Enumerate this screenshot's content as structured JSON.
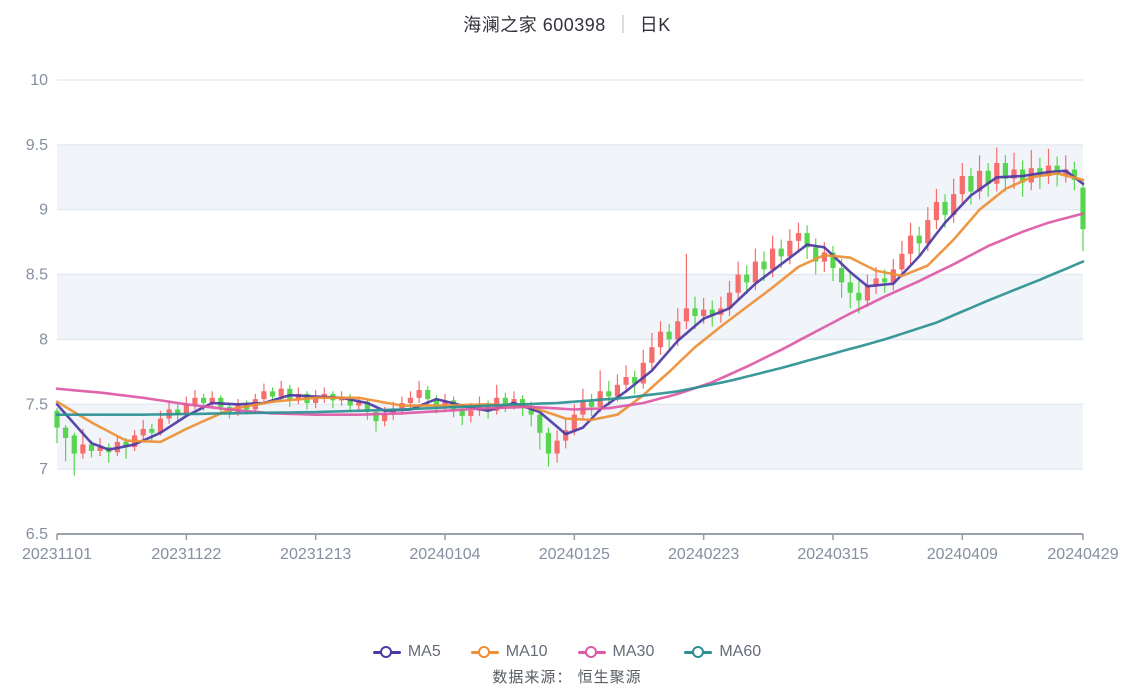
{
  "header": {
    "title_stock": "海澜之家 600398",
    "separator": "│",
    "title_kline": "日K"
  },
  "footer": {
    "source_label": "数据来源： 恒生聚源"
  },
  "chart_data": {
    "type": "candlestick",
    "title": "海澜之家 600398 日K",
    "grid": "horizontal-bands",
    "legend_position": "bottom",
    "y_axis": {
      "min": 6.5,
      "max": 10,
      "tick_step": 0.5,
      "tick_labels": [
        "6.5",
        "7",
        "7.5",
        "8",
        "8.5",
        "9",
        "9.5",
        "10"
      ]
    },
    "x_axis": {
      "tick_labels": [
        "20231101",
        "20231122",
        "20231213",
        "20240104",
        "20240125",
        "20240223",
        "20240315",
        "20240409",
        "20240429"
      ],
      "tick_indices": [
        0,
        15,
        30,
        45,
        60,
        75,
        90,
        105,
        119
      ]
    },
    "colors": {
      "up": "#f56d6d",
      "down": "#58d54e",
      "band": "#f1f5fa",
      "gridline": "#e2e8f2",
      "axis_line": "#9aa1ad",
      "tick_label": "#858fa0"
    },
    "candle_format": [
      "open",
      "close",
      "low",
      "high"
    ],
    "candles": [
      [
        7.45,
        7.32,
        7.2,
        7.47
      ],
      [
        7.32,
        7.24,
        7.06,
        7.34
      ],
      [
        7.26,
        7.12,
        6.95,
        7.28
      ],
      [
        7.12,
        7.19,
        7.08,
        7.31
      ],
      [
        7.19,
        7.14,
        7.09,
        7.22
      ],
      [
        7.14,
        7.17,
        7.1,
        7.24
      ],
      [
        7.17,
        7.13,
        7.05,
        7.2
      ],
      [
        7.13,
        7.21,
        7.1,
        7.26
      ],
      [
        7.21,
        7.17,
        7.08,
        7.24
      ],
      [
        7.17,
        7.26,
        7.14,
        7.3
      ],
      [
        7.26,
        7.31,
        7.22,
        7.38
      ],
      [
        7.31,
        7.28,
        7.22,
        7.35
      ],
      [
        7.28,
        7.39,
        7.26,
        7.45
      ],
      [
        7.39,
        7.46,
        7.35,
        7.52
      ],
      [
        7.46,
        7.42,
        7.36,
        7.5
      ],
      [
        7.42,
        7.5,
        7.4,
        7.56
      ],
      [
        7.5,
        7.55,
        7.46,
        7.61
      ],
      [
        7.55,
        7.51,
        7.45,
        7.58
      ],
      [
        7.51,
        7.55,
        7.48,
        7.6
      ],
      [
        7.55,
        7.48,
        7.43,
        7.57
      ],
      [
        7.48,
        7.44,
        7.39,
        7.51
      ],
      [
        7.44,
        7.5,
        7.41,
        7.54
      ],
      [
        7.5,
        7.46,
        7.42,
        7.53
      ],
      [
        7.46,
        7.54,
        7.44,
        7.58
      ],
      [
        7.54,
        7.6,
        7.5,
        7.66
      ],
      [
        7.6,
        7.56,
        7.51,
        7.63
      ],
      [
        7.56,
        7.62,
        7.52,
        7.68
      ],
      [
        7.62,
        7.54,
        7.48,
        7.65
      ],
      [
        7.54,
        7.58,
        7.5,
        7.63
      ],
      [
        7.58,
        7.51,
        7.46,
        7.6
      ],
      [
        7.51,
        7.56,
        7.47,
        7.61
      ],
      [
        7.56,
        7.58,
        7.51,
        7.63
      ],
      [
        7.58,
        7.53,
        7.47,
        7.6
      ],
      [
        7.53,
        7.56,
        7.49,
        7.6
      ],
      [
        7.56,
        7.49,
        7.44,
        7.58
      ],
      [
        7.49,
        7.52,
        7.45,
        7.56
      ],
      [
        7.52,
        7.44,
        7.38,
        7.54
      ],
      [
        7.44,
        7.37,
        7.29,
        7.46
      ],
      [
        7.37,
        7.43,
        7.33,
        7.48
      ],
      [
        7.43,
        7.46,
        7.38,
        7.52
      ],
      [
        7.46,
        7.51,
        7.42,
        7.56
      ],
      [
        7.51,
        7.55,
        7.46,
        7.6
      ],
      [
        7.55,
        7.61,
        7.51,
        7.68
      ],
      [
        7.61,
        7.54,
        7.49,
        7.64
      ],
      [
        7.54,
        7.49,
        7.43,
        7.57
      ],
      [
        7.49,
        7.53,
        7.44,
        7.58
      ],
      [
        7.53,
        7.46,
        7.4,
        7.56
      ],
      [
        7.46,
        7.41,
        7.34,
        7.5
      ],
      [
        7.41,
        7.45,
        7.36,
        7.51
      ],
      [
        7.45,
        7.5,
        7.41,
        7.56
      ],
      [
        7.5,
        7.45,
        7.39,
        7.53
      ],
      [
        7.45,
        7.55,
        7.42,
        7.65
      ],
      [
        7.55,
        7.5,
        7.44,
        7.59
      ],
      [
        7.5,
        7.54,
        7.46,
        7.6
      ],
      [
        7.54,
        7.48,
        7.41,
        7.57
      ],
      [
        7.48,
        7.42,
        7.33,
        7.52
      ],
      [
        7.42,
        7.28,
        7.15,
        7.45
      ],
      [
        7.28,
        7.12,
        7.02,
        7.32
      ],
      [
        7.12,
        7.22,
        7.05,
        7.3
      ],
      [
        7.22,
        7.3,
        7.16,
        7.38
      ],
      [
        7.3,
        7.42,
        7.26,
        7.5
      ],
      [
        7.42,
        7.52,
        7.38,
        7.62
      ],
      [
        7.52,
        7.48,
        7.41,
        7.58
      ],
      [
        7.48,
        7.6,
        7.44,
        7.76
      ],
      [
        7.6,
        7.56,
        7.49,
        7.68
      ],
      [
        7.56,
        7.65,
        7.52,
        7.73
      ],
      [
        7.65,
        7.71,
        7.59,
        7.8
      ],
      [
        7.71,
        7.66,
        7.58,
        7.76
      ],
      [
        7.66,
        7.82,
        7.62,
        7.92
      ],
      [
        7.82,
        7.94,
        7.76,
        8.05
      ],
      [
        7.94,
        8.06,
        7.88,
        8.14
      ],
      [
        8.06,
        8.0,
        7.92,
        8.12
      ],
      [
        8.0,
        8.14,
        7.95,
        8.24
      ],
      [
        8.14,
        8.24,
        8.08,
        8.66
      ],
      [
        8.24,
        8.18,
        8.08,
        8.33
      ],
      [
        8.18,
        8.23,
        8.12,
        8.32
      ],
      [
        8.23,
        8.19,
        8.1,
        8.3
      ],
      [
        8.19,
        8.24,
        8.13,
        8.33
      ],
      [
        8.24,
        8.36,
        8.18,
        8.45
      ],
      [
        8.36,
        8.5,
        8.3,
        8.6
      ],
      [
        8.5,
        8.44,
        8.35,
        8.57
      ],
      [
        8.44,
        8.6,
        8.38,
        8.7
      ],
      [
        8.6,
        8.54,
        8.45,
        8.68
      ],
      [
        8.54,
        8.7,
        8.48,
        8.8
      ],
      [
        8.7,
        8.64,
        8.55,
        8.77
      ],
      [
        8.64,
        8.76,
        8.58,
        8.85
      ],
      [
        8.76,
        8.82,
        8.68,
        8.9
      ],
      [
        8.82,
        8.71,
        8.62,
        8.88
      ],
      [
        8.71,
        8.6,
        8.5,
        8.78
      ],
      [
        8.6,
        8.67,
        8.52,
        8.75
      ],
      [
        8.67,
        8.55,
        8.45,
        8.72
      ],
      [
        8.55,
        8.44,
        8.32,
        8.62
      ],
      [
        8.44,
        8.36,
        8.24,
        8.52
      ],
      [
        8.36,
        8.3,
        8.2,
        8.45
      ],
      [
        8.3,
        8.42,
        8.25,
        8.5
      ],
      [
        8.42,
        8.47,
        8.35,
        8.56
      ],
      [
        8.47,
        8.44,
        8.36,
        8.54
      ],
      [
        8.44,
        8.54,
        8.38,
        8.62
      ],
      [
        8.54,
        8.66,
        8.48,
        8.76
      ],
      [
        8.66,
        8.8,
        8.58,
        8.9
      ],
      [
        8.8,
        8.74,
        8.64,
        8.87
      ],
      [
        8.74,
        8.92,
        8.68,
        9.02
      ],
      [
        8.92,
        9.06,
        8.85,
        9.16
      ],
      [
        9.06,
        8.96,
        8.86,
        9.12
      ],
      [
        8.96,
        9.12,
        8.9,
        9.24
      ],
      [
        9.12,
        9.26,
        9.05,
        9.36
      ],
      [
        9.26,
        9.14,
        9.04,
        9.32
      ],
      [
        9.14,
        9.3,
        9.08,
        9.42
      ],
      [
        9.3,
        9.2,
        9.1,
        9.36
      ],
      [
        9.2,
        9.36,
        9.14,
        9.48
      ],
      [
        9.36,
        9.24,
        9.14,
        9.42
      ],
      [
        9.24,
        9.31,
        9.16,
        9.44
      ],
      [
        9.31,
        9.21,
        9.1,
        9.38
      ],
      [
        9.21,
        9.32,
        9.15,
        9.46
      ],
      [
        9.32,
        9.26,
        9.16,
        9.4
      ],
      [
        9.26,
        9.34,
        9.2,
        9.47
      ],
      [
        9.34,
        9.27,
        9.18,
        9.41
      ],
      [
        9.27,
        9.31,
        9.21,
        9.42
      ],
      [
        9.31,
        9.23,
        9.15,
        9.37
      ],
      [
        9.17,
        8.85,
        8.68,
        9.22
      ]
    ],
    "ma_series": [
      {
        "name": "MA5",
        "color": "#4c38a4",
        "keypoints": [
          [
            0,
            7.5
          ],
          [
            2,
            7.35
          ],
          [
            4,
            7.2
          ],
          [
            6,
            7.15
          ],
          [
            9,
            7.19
          ],
          [
            12,
            7.28
          ],
          [
            15,
            7.41
          ],
          [
            18,
            7.51
          ],
          [
            21,
            7.5
          ],
          [
            24,
            7.51
          ],
          [
            27,
            7.57
          ],
          [
            30,
            7.56
          ],
          [
            33,
            7.55
          ],
          [
            36,
            7.51
          ],
          [
            38,
            7.45
          ],
          [
            41,
            7.46
          ],
          [
            44,
            7.54
          ],
          [
            47,
            7.49
          ],
          [
            50,
            7.45
          ],
          [
            53,
            7.51
          ],
          [
            56,
            7.44
          ],
          [
            59,
            7.27
          ],
          [
            61,
            7.32
          ],
          [
            63,
            7.46
          ],
          [
            66,
            7.6
          ],
          [
            69,
            7.76
          ],
          [
            72,
            7.99
          ],
          [
            75,
            8.16
          ],
          [
            78,
            8.24
          ],
          [
            81,
            8.43
          ],
          [
            84,
            8.58
          ],
          [
            87,
            8.73
          ],
          [
            89,
            8.71
          ],
          [
            92,
            8.52
          ],
          [
            94,
            8.41
          ],
          [
            97,
            8.43
          ],
          [
            100,
            8.64
          ],
          [
            103,
            8.9
          ],
          [
            106,
            9.11
          ],
          [
            109,
            9.25
          ],
          [
            112,
            9.26
          ],
          [
            115,
            9.29
          ],
          [
            117,
            9.3
          ],
          [
            119,
            9.2
          ]
        ]
      },
      {
        "name": "MA10",
        "color": "#ed8f35",
        "keypoints": [
          [
            0,
            7.52
          ],
          [
            4,
            7.36
          ],
          [
            8,
            7.22
          ],
          [
            12,
            7.21
          ],
          [
            15,
            7.31
          ],
          [
            20,
            7.46
          ],
          [
            25,
            7.52
          ],
          [
            30,
            7.55
          ],
          [
            35,
            7.55
          ],
          [
            40,
            7.49
          ],
          [
            45,
            7.49
          ],
          [
            50,
            7.5
          ],
          [
            55,
            7.48
          ],
          [
            59,
            7.39
          ],
          [
            62,
            7.38
          ],
          [
            65,
            7.42
          ],
          [
            68,
            7.57
          ],
          [
            71,
            7.75
          ],
          [
            74,
            7.94
          ],
          [
            77,
            8.1
          ],
          [
            80,
            8.25
          ],
          [
            83,
            8.4
          ],
          [
            86,
            8.56
          ],
          [
            89,
            8.65
          ],
          [
            92,
            8.63
          ],
          [
            95,
            8.53
          ],
          [
            98,
            8.49
          ],
          [
            101,
            8.57
          ],
          [
            104,
            8.77
          ],
          [
            107,
            9.0
          ],
          [
            110,
            9.16
          ],
          [
            113,
            9.25
          ],
          [
            116,
            9.28
          ],
          [
            119,
            9.23
          ]
        ]
      },
      {
        "name": "MA30",
        "color": "#dd58a5",
        "keypoints": [
          [
            0,
            7.62
          ],
          [
            5,
            7.59
          ],
          [
            10,
            7.55
          ],
          [
            15,
            7.5
          ],
          [
            20,
            7.46
          ],
          [
            25,
            7.43
          ],
          [
            30,
            7.42
          ],
          [
            35,
            7.42
          ],
          [
            40,
            7.43
          ],
          [
            45,
            7.45
          ],
          [
            50,
            7.47
          ],
          [
            55,
            7.48
          ],
          [
            60,
            7.46
          ],
          [
            64,
            7.47
          ],
          [
            68,
            7.51
          ],
          [
            72,
            7.58
          ],
          [
            76,
            7.67
          ],
          [
            80,
            7.79
          ],
          [
            84,
            7.92
          ],
          [
            88,
            8.06
          ],
          [
            92,
            8.2
          ],
          [
            96,
            8.33
          ],
          [
            100,
            8.45
          ],
          [
            104,
            8.58
          ],
          [
            108,
            8.72
          ],
          [
            112,
            8.83
          ],
          [
            115,
            8.9
          ],
          [
            119,
            8.97
          ]
        ]
      },
      {
        "name": "MA60",
        "color": "#2b8f93",
        "keypoints": [
          [
            0,
            7.42
          ],
          [
            10,
            7.42
          ],
          [
            20,
            7.43
          ],
          [
            30,
            7.44
          ],
          [
            40,
            7.46
          ],
          [
            50,
            7.49
          ],
          [
            58,
            7.51
          ],
          [
            66,
            7.55
          ],
          [
            72,
            7.6
          ],
          [
            78,
            7.68
          ],
          [
            84,
            7.78
          ],
          [
            90,
            7.89
          ],
          [
            96,
            8.0
          ],
          [
            102,
            8.13
          ],
          [
            108,
            8.3
          ],
          [
            114,
            8.46
          ],
          [
            119,
            8.6
          ]
        ]
      }
    ]
  }
}
